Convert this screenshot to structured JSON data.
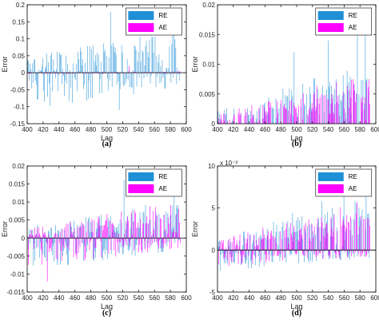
{
  "chart_data": [
    {
      "type": "bar",
      "caption": "(a)",
      "xlabel": "Lag",
      "ylabel": "Error",
      "xlim": [
        400,
        600
      ],
      "ylim": [
        -0.15,
        0.2
      ],
      "xticks": [
        "400",
        "420",
        "440",
        "460",
        "480",
        "500",
        "520",
        "540",
        "560",
        "580",
        "600"
      ],
      "yticks": [
        "0.2",
        "0.15",
        "0.1",
        "0.05",
        "0",
        "-0.05",
        "-0.1",
        "-0.15"
      ],
      "yexponent": "",
      "legend_position": "top-right",
      "series": [
        {
          "name": "RE",
          "color": "#1f8fd6",
          "amp_pos": 0.13,
          "amp_neg": 0.11,
          "trend": 0.0,
          "peaks": [
            [
              505,
              0.18
            ],
            [
              516,
              -0.11
            ],
            [
              585,
              0.17
            ]
          ]
        },
        {
          "name": "AE",
          "color": "#ff00ff",
          "amp_pos": 0.004,
          "amp_neg": 0.004,
          "trend": 0.0,
          "peaks": [
            [
              528,
              0.02
            ]
          ]
        }
      ]
    },
    {
      "type": "bar",
      "caption": "(b)",
      "xlabel": "Lag",
      "ylabel": "Error",
      "xlim": [
        400,
        600
      ],
      "ylim": [
        0,
        0.02
      ],
      "xticks": [
        "400",
        "420",
        "440",
        "460",
        "480",
        "500",
        "520",
        "540",
        "560",
        "580",
        "600"
      ],
      "yticks": [
        "0.02",
        "0.015",
        "0.01",
        "0.005",
        "0"
      ],
      "yexponent": "",
      "legend_position": "top-right",
      "series": [
        {
          "name": "RE",
          "color": "#1f8fd6",
          "amp_pos": 0.006,
          "amp_neg": 0.004,
          "trend": 0.006,
          "peaks": [
            [
              497,
              0.012
            ],
            [
              540,
              0.014
            ],
            [
              577,
              0.017
            ],
            [
              587,
              0.015
            ]
          ]
        },
        {
          "name": "AE",
          "color": "#ff00ff",
          "amp_pos": 0.005,
          "amp_neg": 0.003,
          "trend": 0.005,
          "peaks": []
        }
      ]
    },
    {
      "type": "bar",
      "caption": "(c)",
      "xlabel": "Lag",
      "ylabel": "Error",
      "xlim": [
        400,
        600
      ],
      "ylim": [
        -0.015,
        0.02
      ],
      "xticks": [
        "400",
        "420",
        "440",
        "460",
        "480",
        "500",
        "520",
        "540",
        "560",
        "580",
        "600"
      ],
      "yticks": [
        "0.02",
        "0.015",
        "0.01",
        "0.005",
        "0",
        "-0.005",
        "-0.01",
        "-0.015"
      ],
      "yexponent": "",
      "legend_position": "top-right",
      "series": [
        {
          "name": "RE",
          "color": "#1f8fd6",
          "amp_pos": 0.009,
          "amp_neg": 0.009,
          "trend": 0.003,
          "peaks": [
            [
              522,
              0.016
            ],
            [
              585,
              0.016
            ]
          ]
        },
        {
          "name": "AE",
          "color": "#ff00ff",
          "amp_pos": 0.008,
          "amp_neg": 0.008,
          "trend": 0.003,
          "peaks": [
            [
              425,
              -0.012
            ]
          ]
        }
      ]
    },
    {
      "type": "bar",
      "caption": "(d)",
      "xlabel": "Lag",
      "ylabel": "Error",
      "xlim": [
        400,
        600
      ],
      "ylim": [
        -0.005,
        0.01
      ],
      "xticks": [
        "400",
        "420",
        "440",
        "460",
        "480",
        "500",
        "520",
        "540",
        "560",
        "580",
        "600"
      ],
      "yticks": [
        "10",
        "5",
        "0",
        "-5"
      ],
      "yexponent": "x 10⁻³",
      "legend_position": "top-right",
      "series": [
        {
          "name": "RE",
          "color": "#1f8fd6",
          "amp_pos": 0.004,
          "amp_neg": 0.0025,
          "trend": 0.004,
          "peaks": [
            [
              560,
              0.0085
            ],
            [
              588,
              0.0085
            ]
          ]
        },
        {
          "name": "AE",
          "color": "#ff00ff",
          "amp_pos": 0.0035,
          "amp_neg": 0.002,
          "trend": 0.0035,
          "peaks": []
        }
      ]
    }
  ]
}
